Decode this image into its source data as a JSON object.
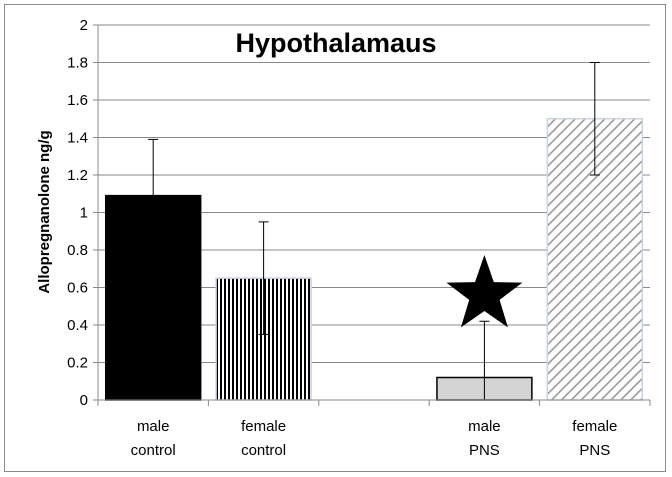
{
  "chart_data": {
    "type": "bar",
    "title": "Hypothalamaus",
    "xlabel": "",
    "ylabel": "Allopregnanolone ng/g",
    "ylim": [
      0,
      2
    ],
    "yticks": [
      "0",
      "0.2",
      "0.4",
      "0.6",
      "0.8",
      "1",
      "1.2",
      "1.4",
      "1.6",
      "1.8",
      "2"
    ],
    "grid": true,
    "legend": "none",
    "categories": [
      [
        "male",
        "control"
      ],
      [
        "female",
        "control"
      ],
      [
        "",
        ""
      ],
      [
        "male",
        "PNS"
      ],
      [
        "female",
        "PNS"
      ]
    ],
    "values": [
      1.09,
      0.65,
      null,
      0.12,
      1.5
    ],
    "error": [
      0.3,
      0.3,
      null,
      0.3,
      0.3
    ],
    "fills": [
      "solid-black",
      "vertical-stripes",
      "none",
      "light-gray",
      "diagonal-hatch"
    ],
    "annotations": [
      {
        "type": "star",
        "category_index": 3,
        "color": "#000000"
      }
    ]
  }
}
